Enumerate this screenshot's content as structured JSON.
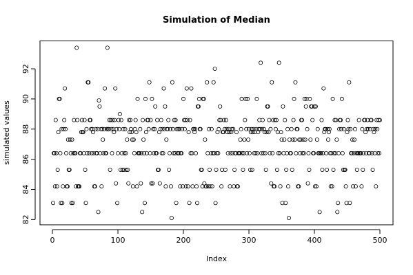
{
  "chart_data": {
    "type": "scatter",
    "title": "Simulation of Median",
    "xlabel": "Index",
    "ylabel": "simulated values",
    "color": "#000000",
    "xlim": [
      -19,
      520
    ],
    "xticks": [
      0,
      100,
      200,
      300,
      400,
      500
    ],
    "ylim": [
      81.65,
      93.85
    ],
    "yticks": [
      82,
      84,
      86,
      88,
      90,
      92
    ],
    "x": [
      1,
      2,
      3,
      4,
      5,
      6,
      7,
      8,
      9,
      10,
      11,
      12,
      13,
      14,
      15,
      16,
      17,
      18,
      19,
      20,
      21,
      22,
      23,
      24,
      25,
      26,
      27,
      28,
      29,
      30,
      31,
      32,
      33,
      34,
      35,
      36,
      37,
      38,
      39,
      40,
      41,
      42,
      43,
      44,
      45,
      46,
      47,
      48,
      49,
      50,
      51,
      52,
      53,
      54,
      55,
      56,
      57,
      58,
      59,
      60,
      61,
      62,
      63,
      64,
      65,
      66,
      67,
      68,
      69,
      70,
      71,
      72,
      73,
      74,
      75,
      76,
      77,
      78,
      79,
      80,
      81,
      82,
      83,
      84,
      85,
      86,
      87,
      88,
      89,
      90,
      91,
      92,
      93,
      94,
      95,
      96,
      97,
      98,
      99,
      100,
      101,
      102,
      103,
      104,
      105,
      106,
      107,
      108,
      109,
      110,
      111,
      112,
      113,
      114,
      115,
      116,
      117,
      118,
      119,
      120,
      121,
      122,
      123,
      124,
      125,
      126,
      127,
      128,
      129,
      130,
      131,
      132,
      133,
      134,
      135,
      136,
      137,
      138,
      139,
      140,
      141,
      142,
      143,
      144,
      145,
      146,
      147,
      148,
      149,
      150,
      151,
      152,
      153,
      154,
      155,
      156,
      157,
      158,
      159,
      160,
      161,
      162,
      163,
      164,
      165,
      166,
      167,
      168,
      169,
      170,
      171,
      172,
      173,
      174,
      175,
      176,
      177,
      178,
      179,
      180,
      181,
      182,
      183,
      184,
      185,
      186,
      187,
      188,
      189,
      190,
      191,
      192,
      193,
      194,
      195,
      196,
      197,
      198,
      199,
      200,
      201,
      202,
      203,
      204,
      205,
      206,
      207,
      208,
      209,
      210,
      211,
      212,
      213,
      214,
      215,
      216,
      217,
      218,
      219,
      220,
      221,
      222,
      223,
      224,
      225,
      226,
      227,
      228,
      229,
      230,
      231,
      232,
      233,
      234,
      235,
      236,
      237,
      238,
      239,
      240,
      241,
      242,
      243,
      244,
      245,
      246,
      247,
      248,
      249,
      250,
      251,
      252,
      253,
      254,
      255,
      256,
      257,
      258,
      259,
      260,
      261,
      262,
      263,
      264,
      265,
      266,
      267,
      268,
      269,
      270,
      271,
      272,
      273,
      274,
      275,
      276,
      277,
      278,
      279,
      280,
      281,
      282,
      283,
      284,
      285,
      286,
      287,
      288,
      289,
      290,
      291,
      292,
      293,
      294,
      295,
      296,
      297,
      298,
      299,
      300,
      301,
      302,
      303,
      304,
      305,
      306,
      307,
      308,
      309,
      310,
      311,
      312,
      313,
      314,
      315,
      316,
      317,
      318,
      319,
      320,
      321,
      322,
      323,
      324,
      325,
      326,
      327,
      328,
      329,
      330,
      331,
      332,
      333,
      334,
      335,
      336,
      337,
      338,
      339,
      340,
      341,
      342,
      343,
      344,
      345,
      346,
      347,
      348,
      349,
      350,
      351,
      352,
      353,
      354,
      355,
      356,
      357,
      358,
      359,
      360,
      361,
      362,
      363,
      364,
      365,
      366,
      367,
      368,
      369,
      370,
      371,
      372,
      373,
      374,
      375,
      376,
      377,
      378,
      379,
      380,
      381,
      382,
      383,
      384,
      385,
      386,
      387,
      388,
      389,
      390,
      391,
      392,
      393,
      394,
      395,
      396,
      397,
      398,
      399,
      400,
      401,
      402,
      403,
      404,
      405,
      406,
      407,
      408,
      409,
      410,
      411,
      412,
      413,
      414,
      415,
      416,
      417,
      418,
      419,
      420,
      421,
      422,
      423,
      424,
      425,
      426,
      427,
      428,
      429,
      430,
      431,
      432,
      433,
      434,
      435,
      436,
      437,
      438,
      439,
      440,
      441,
      442,
      443,
      444,
      445,
      446,
      447,
      448,
      449,
      450,
      451,
      452,
      453,
      454,
      455,
      456,
      457,
      458,
      459,
      460,
      461,
      462,
      463,
      464,
      465,
      466,
      467,
      468,
      469,
      470,
      471,
      472,
      473,
      474,
      475,
      476,
      477,
      478,
      479,
      480,
      481,
      482,
      483,
      484,
      485,
      486,
      487,
      488,
      489,
      490,
      491,
      492,
      493,
      494,
      495,
      496,
      497,
      498,
      499,
      500
    ],
    "values": [
      83.1,
      86.4,
      86.4,
      84.2,
      88.6,
      86.4,
      84.2,
      85.3,
      87.8,
      90.0,
      90.0,
      86.4,
      83.1,
      88.0,
      83.1,
      84.2,
      88.0,
      88.6,
      90.7,
      88.0,
      86.4,
      84.2,
      84.2,
      87.3,
      85.3,
      85.3,
      87.3,
      86.4,
      83.1,
      87.3,
      83.1,
      86.4,
      88.6,
      86.4,
      86.4,
      84.2,
      93.4,
      88.6,
      84.2,
      84.2,
      84.2,
      86.4,
      86.4,
      87.8,
      88.6,
      87.8,
      87.8,
      86.4,
      88.6,
      85.3,
      83.1,
      88.0,
      86.4,
      91.1,
      91.1,
      86.4,
      88.6,
      88.6,
      88.0,
      86.4,
      88.0,
      87.8,
      86.4,
      84.2,
      84.2,
      88.0,
      86.4,
      86.4,
      88.0,
      82.5,
      89.9,
      89.5,
      86.4,
      88.0,
      84.2,
      88.0,
      87.3,
      86.4,
      88.0,
      90.7,
      86.4,
      86.4,
      88.0,
      93.4,
      88.0,
      88.0,
      88.6,
      85.3,
      88.6,
      88.0,
      86.4,
      88.6,
      88.0,
      87.8,
      88.6,
      90.7,
      84.4,
      88.0,
      83.1,
      86.4,
      88.6,
      88.0,
      89.0,
      85.3,
      88.6,
      86.4,
      85.3,
      88.0,
      85.3,
      86.4,
      88.0,
      86.4,
      85.3,
      87.3,
      85.3,
      84.4,
      88.6,
      87.8,
      88.6,
      88.0,
      87.8,
      87.3,
      84.2,
      87.3,
      86.4,
      88.0,
      88.6,
      87.8,
      84.2,
      90.0,
      86.4,
      86.4,
      86.4,
      88.0,
      84.4,
      86.4,
      82.5,
      88.6,
      87.3,
      86.4,
      83.1,
      90.0,
      87.8,
      86.4,
      88.6,
      88.6,
      88.0,
      91.1,
      86.4,
      88.6,
      84.4,
      90.0,
      84.4,
      88.0,
      86.4,
      88.0,
      89.5,
      86.4,
      86.4,
      88.6,
      85.3,
      85.3,
      87.8,
      84.4,
      88.0,
      88.6,
      86.4,
      88.0,
      86.4,
      90.7,
      88.0,
      89.5,
      84.2,
      87.3,
      88.0,
      88.0,
      88.6,
      85.3,
      86.4,
      88.0,
      84.2,
      82.1,
      91.1,
      88.0,
      86.4,
      88.6,
      86.4,
      88.6,
      83.1,
      88.0,
      86.4,
      88.0,
      86.4,
      88.0,
      84.2,
      86.4,
      86.4,
      88.0,
      84.2,
      90.0,
      88.6,
      88.0,
      88.6,
      84.2,
      90.7,
      88.6,
      84.2,
      87.8,
      83.1,
      88.6,
      86.4,
      90.7,
      86.4,
      84.2,
      88.0,
      88.0,
      87.8,
      88.0,
      86.4,
      84.2,
      83.1,
      89.5,
      89.5,
      90.0,
      88.0,
      88.0,
      85.3,
      85.3,
      84.2,
      90.0,
      90.0,
      84.4,
      87.3,
      84.2,
      84.2,
      91.1,
      86.4,
      84.2,
      88.0,
      85.3,
      84.2,
      86.4,
      88.0,
      84.2,
      86.4,
      91.1,
      86.4,
      92.0,
      83.1,
      85.3,
      86.4,
      87.8,
      86.4,
      88.0,
      88.6,
      89.5,
      88.6,
      84.2,
      85.3,
      87.8,
      87.8,
      88.6,
      88.0,
      85.3,
      88.6,
      88.0,
      87.8,
      86.4,
      88.0,
      87.8,
      84.2,
      86.4,
      87.8,
      88.0,
      86.4,
      88.0,
      84.2,
      85.3,
      86.4,
      86.4,
      87.8,
      84.2,
      84.2,
      86.4,
      86.4,
      86.4,
      87.3,
      88.0,
      90.0,
      86.4,
      85.3,
      86.4,
      87.3,
      88.6,
      90.0,
      88.0,
      86.4,
      90.0,
      87.3,
      88.0,
      86.4,
      85.3,
      87.8,
      88.0,
      85.3,
      87.8,
      88.0,
      86.4,
      87.8,
      86.4,
      88.0,
      90.0,
      86.4,
      87.8,
      88.0,
      88.6,
      88.0,
      92.4,
      86.4,
      88.0,
      88.6,
      86.4,
      88.0,
      87.8,
      86.4,
      85.3,
      87.8,
      89.5,
      89.5,
      87.8,
      88.6,
      86.4,
      88.0,
      84.4,
      91.1,
      86.4,
      88.6,
      84.2,
      84.2,
      88.6,
      88.0,
      88.6,
      85.3,
      87.8,
      86.4,
      92.4,
      86.4,
      84.2,
      87.8,
      87.3,
      83.1,
      89.5,
      86.4,
      87.3,
      88.6,
      83.1,
      85.3,
      86.4,
      88.0,
      84.2,
      82.1,
      87.3,
      86.4,
      86.4,
      88.0,
      85.3,
      87.3,
      88.6,
      90.0,
      87.3,
      91.1,
      86.4,
      88.0,
      88.0,
      84.2,
      84.2,
      87.3,
      86.4,
      87.3,
      88.6,
      88.6,
      86.4,
      87.3,
      86.4,
      90.0,
      87.3,
      89.5,
      90.0,
      88.0,
      84.4,
      86.4,
      85.3,
      90.0,
      87.3,
      89.5,
      89.5,
      88.6,
      86.4,
      86.4,
      89.5,
      84.2,
      89.5,
      84.2,
      87.3,
      88.0,
      86.4,
      86.4,
      82.5,
      86.4,
      86.4,
      88.6,
      85.3,
      86.4,
      90.7,
      87.8,
      88.0,
      88.0,
      86.4,
      85.3,
      88.0,
      87.3,
      87.8,
      88.0,
      86.4,
      84.2,
      86.4,
      84.2,
      90.0,
      85.3,
      86.4,
      88.6,
      86.4,
      88.6,
      87.3,
      82.5,
      83.1,
      86.4,
      88.0,
      88.6,
      88.6,
      88.0,
      90.0,
      86.4,
      85.3,
      88.0,
      85.3,
      85.3,
      84.2,
      83.1,
      87.8,
      88.6,
      88.0,
      91.1,
      83.1,
      88.0,
      86.4,
      86.4,
      87.3,
      84.2,
      86.4,
      87.3,
      88.0,
      84.2,
      86.4,
      85.3,
      86.4,
      86.4,
      88.6,
      86.4,
      86.4,
      86.4,
      84.2,
      88.0,
      85.3,
      86.4,
      88.6,
      88.6,
      87.8,
      86.4,
      88.0,
      88.6,
      88.0,
      86.4,
      86.4,
      88.0,
      88.6,
      88.6,
      86.4,
      85.3,
      88.0,
      87.8,
      86.4,
      88.0,
      84.2,
      88.6,
      88.0,
      86.4,
      88.6,
      86.4,
      88.6
    ]
  }
}
